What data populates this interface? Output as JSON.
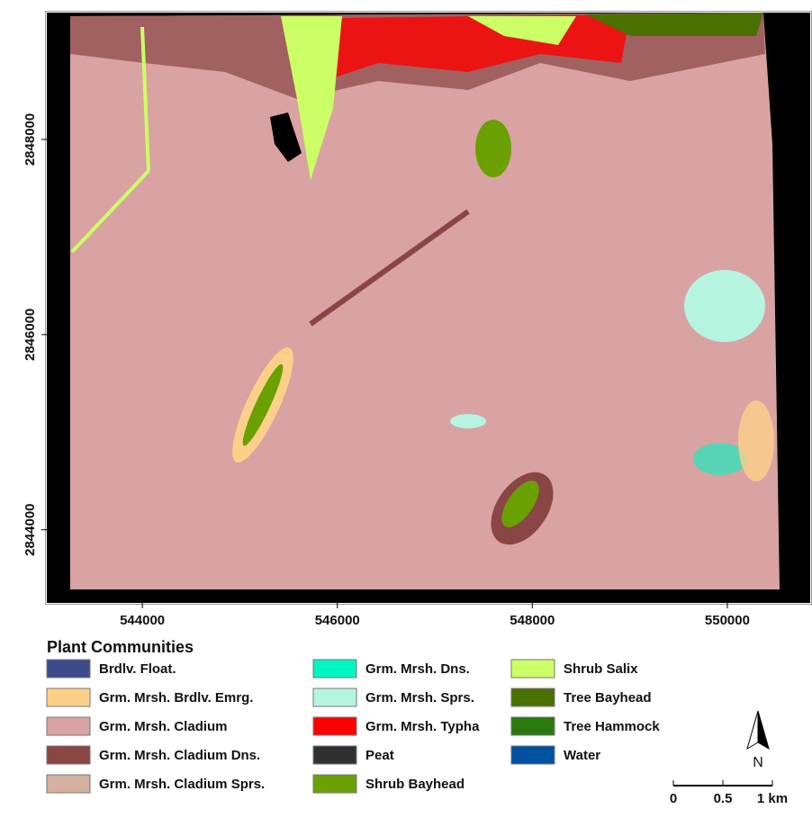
{
  "map": {
    "xlim": [
      543020,
      550850
    ],
    "ylim": [
      2843250,
      2849300
    ],
    "xticks": [
      544000,
      546000,
      548000,
      550000
    ],
    "yticks": [
      2844000,
      2846000,
      2848000
    ]
  },
  "legend": {
    "title": "Plant Communities",
    "items": [
      {
        "label": "Brdlv. Float.",
        "color": "#3f4a8a"
      },
      {
        "label": "Grm. Mrsh. Brdlv. Emrg.",
        "color": "#fdd08a"
      },
      {
        "label": "Grm. Mrsh. Cladium",
        "color": "#d9a3a3"
      },
      {
        "label": "Grm. Mrsh. Cladium Dns.",
        "color": "#8a4545"
      },
      {
        "label": "Grm. Mrsh. Cladium Sprs.",
        "color": "#d4b0a0"
      },
      {
        "label": "Grm. Mrsh. Dns.",
        "color": "#00f5c0"
      },
      {
        "label": "Grm. Mrsh. Sprs.",
        "color": "#b5f5e0"
      },
      {
        "label": "Grm. Mrsh. Typha",
        "color": "#ff0000"
      },
      {
        "label": "Peat",
        "color": "#303030"
      },
      {
        "label": "Shrub Bayhead",
        "color": "#6aa000"
      },
      {
        "label": "Shrub Salix",
        "color": "#ccff66"
      },
      {
        "label": "Tree Bayhead",
        "color": "#4a7000"
      },
      {
        "label": "Tree Hammock",
        "color": "#2a7a10"
      },
      {
        "label": "Water",
        "color": "#0050a0"
      }
    ]
  },
  "north_arrow": "N",
  "scale_bar": {
    "labels": [
      "0",
      "0.5",
      "1 km"
    ]
  }
}
